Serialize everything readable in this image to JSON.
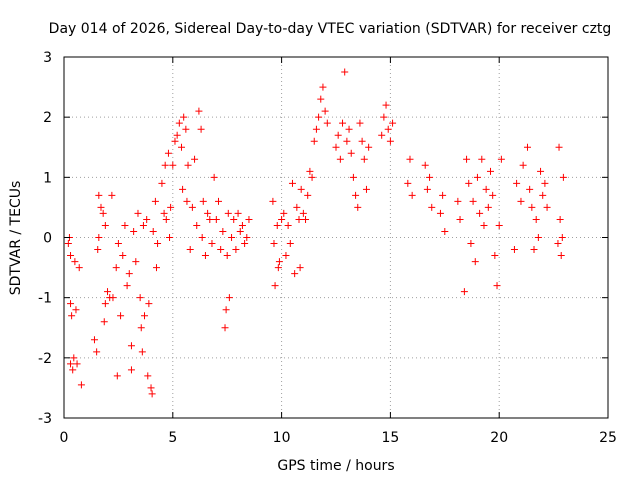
{
  "chart_data": {
    "type": "scatter",
    "title": "Day 014 of 2026, Sidereal Day-to-day VTEC variation (SDTVAR) for receiver cztg",
    "xlabel": "GPS time / hours",
    "ylabel": "SDTVAR / TECUs",
    "xlim": [
      0,
      25
    ],
    "ylim": [
      -3,
      3
    ],
    "xticks": [
      0,
      5,
      10,
      15,
      20,
      25
    ],
    "yticks": [
      -3,
      -2,
      -1,
      0,
      1,
      2,
      3
    ],
    "xtick_labels": [
      "0",
      "5",
      "10",
      "15",
      "20",
      "25"
    ],
    "ytick_labels": [
      "-3",
      "-2",
      "-1",
      "0",
      "1",
      "2",
      "3"
    ],
    "grid": true,
    "marker": "+",
    "color": "#ff0000",
    "series": [
      {
        "name": "SDTVAR",
        "points": [
          [
            0.2,
            -0.1
          ],
          [
            0.25,
            0.0
          ],
          [
            0.3,
            -0.3
          ],
          [
            0.3,
            -1.1
          ],
          [
            0.35,
            -1.3
          ],
          [
            0.3,
            -2.1
          ],
          [
            0.4,
            -2.2
          ],
          [
            0.45,
            -2.0
          ],
          [
            0.5,
            -0.4
          ],
          [
            0.55,
            -1.2
          ],
          [
            0.6,
            -2.1
          ],
          [
            0.7,
            -0.5
          ],
          [
            0.8,
            -2.45
          ],
          [
            1.4,
            -1.7
          ],
          [
            1.5,
            -1.9
          ],
          [
            1.55,
            -0.2
          ],
          [
            1.6,
            0.0
          ],
          [
            1.6,
            0.7
          ],
          [
            1.7,
            0.5
          ],
          [
            1.8,
            0.4
          ],
          [
            1.85,
            -1.4
          ],
          [
            1.9,
            0.2
          ],
          [
            1.9,
            -1.1
          ],
          [
            2.0,
            -0.9
          ],
          [
            2.1,
            -1.0
          ],
          [
            2.2,
            0.7
          ],
          [
            2.25,
            -1.0
          ],
          [
            2.4,
            -0.5
          ],
          [
            2.45,
            -2.3
          ],
          [
            2.5,
            -0.1
          ],
          [
            2.6,
            -1.3
          ],
          [
            2.7,
            -0.3
          ],
          [
            2.8,
            0.2
          ],
          [
            2.9,
            -0.8
          ],
          [
            3.0,
            -0.6
          ],
          [
            3.1,
            -2.2
          ],
          [
            3.1,
            -1.8
          ],
          [
            3.2,
            0.1
          ],
          [
            3.3,
            -0.4
          ],
          [
            3.4,
            0.4
          ],
          [
            3.5,
            -1.0
          ],
          [
            3.55,
            -1.5
          ],
          [
            3.6,
            -1.9
          ],
          [
            3.65,
            0.2
          ],
          [
            3.7,
            -1.3
          ],
          [
            3.8,
            0.3
          ],
          [
            3.85,
            -2.3
          ],
          [
            3.9,
            -1.1
          ],
          [
            4.0,
            -2.5
          ],
          [
            4.05,
            -2.6
          ],
          [
            4.1,
            0.1
          ],
          [
            4.2,
            0.6
          ],
          [
            4.25,
            -0.5
          ],
          [
            4.3,
            -0.1
          ],
          [
            4.5,
            0.9
          ],
          [
            4.6,
            0.4
          ],
          [
            4.65,
            1.2
          ],
          [
            4.7,
            0.3
          ],
          [
            4.8,
            1.4
          ],
          [
            4.85,
            0.0
          ],
          [
            4.9,
            0.5
          ],
          [
            5.0,
            1.2
          ],
          [
            5.1,
            1.6
          ],
          [
            5.2,
            1.7
          ],
          [
            5.3,
            1.9
          ],
          [
            5.4,
            1.5
          ],
          [
            5.45,
            0.8
          ],
          [
            5.5,
            2.0
          ],
          [
            5.6,
            1.8
          ],
          [
            5.65,
            0.6
          ],
          [
            5.7,
            1.2
          ],
          [
            5.8,
            -0.2
          ],
          [
            5.9,
            0.5
          ],
          [
            6.0,
            1.3
          ],
          [
            6.1,
            0.2
          ],
          [
            6.2,
            2.1
          ],
          [
            6.3,
            1.8
          ],
          [
            6.35,
            0.0
          ],
          [
            6.4,
            0.6
          ],
          [
            6.5,
            -0.3
          ],
          [
            6.6,
            0.4
          ],
          [
            6.7,
            0.3
          ],
          [
            6.8,
            -0.1
          ],
          [
            6.9,
            1.0
          ],
          [
            7.0,
            0.3
          ],
          [
            7.1,
            0.6
          ],
          [
            7.2,
            -0.2
          ],
          [
            7.3,
            0.1
          ],
          [
            7.4,
            -1.5
          ],
          [
            7.45,
            -1.2
          ],
          [
            7.5,
            -0.3
          ],
          [
            7.55,
            0.4
          ],
          [
            7.6,
            -1.0
          ],
          [
            7.7,
            0.0
          ],
          [
            7.8,
            0.3
          ],
          [
            7.9,
            -0.2
          ],
          [
            8.0,
            0.4
          ],
          [
            8.1,
            0.1
          ],
          [
            8.2,
            0.2
          ],
          [
            8.3,
            -0.1
          ],
          [
            8.4,
            0.0
          ],
          [
            8.5,
            0.3
          ],
          [
            9.6,
            0.6
          ],
          [
            9.65,
            -0.1
          ],
          [
            9.7,
            -0.8
          ],
          [
            9.8,
            0.2
          ],
          [
            9.85,
            -0.5
          ],
          [
            9.9,
            -0.4
          ],
          [
            10.0,
            0.3
          ],
          [
            10.1,
            0.4
          ],
          [
            10.2,
            -0.3
          ],
          [
            10.3,
            0.2
          ],
          [
            10.4,
            -0.1
          ],
          [
            10.5,
            0.9
          ],
          [
            10.6,
            -0.6
          ],
          [
            10.7,
            0.5
          ],
          [
            10.8,
            0.3
          ],
          [
            10.85,
            -0.5
          ],
          [
            10.9,
            0.8
          ],
          [
            11.0,
            0.4
          ],
          [
            11.1,
            0.3
          ],
          [
            11.2,
            0.7
          ],
          [
            11.3,
            1.1
          ],
          [
            11.4,
            1.0
          ],
          [
            11.5,
            1.6
          ],
          [
            11.6,
            1.8
          ],
          [
            11.7,
            2.0
          ],
          [
            11.8,
            2.3
          ],
          [
            11.9,
            2.5
          ],
          [
            12.0,
            2.1
          ],
          [
            12.1,
            1.9
          ],
          [
            12.5,
            1.5
          ],
          [
            12.6,
            1.7
          ],
          [
            12.7,
            1.3
          ],
          [
            12.8,
            1.9
          ],
          [
            12.9,
            2.75
          ],
          [
            13.0,
            1.6
          ],
          [
            13.1,
            1.8
          ],
          [
            13.2,
            1.4
          ],
          [
            13.3,
            1.0
          ],
          [
            13.4,
            0.7
          ],
          [
            13.5,
            0.5
          ],
          [
            13.6,
            1.9
          ],
          [
            13.7,
            1.6
          ],
          [
            13.8,
            1.3
          ],
          [
            13.9,
            0.8
          ],
          [
            14.0,
            1.5
          ],
          [
            14.6,
            1.7
          ],
          [
            14.7,
            2.0
          ],
          [
            14.8,
            2.2
          ],
          [
            14.9,
            1.8
          ],
          [
            15.0,
            1.6
          ],
          [
            15.1,
            1.9
          ],
          [
            15.8,
            0.9
          ],
          [
            15.9,
            1.3
          ],
          [
            16.0,
            0.7
          ],
          [
            16.6,
            1.2
          ],
          [
            16.7,
            0.8
          ],
          [
            16.8,
            1.0
          ],
          [
            16.9,
            0.5
          ],
          [
            17.3,
            0.4
          ],
          [
            17.4,
            0.7
          ],
          [
            17.5,
            0.1
          ],
          [
            18.1,
            0.6
          ],
          [
            18.2,
            0.3
          ],
          [
            18.4,
            -0.9
          ],
          [
            18.5,
            1.3
          ],
          [
            18.6,
            0.9
          ],
          [
            18.7,
            -0.1
          ],
          [
            18.8,
            0.6
          ],
          [
            18.9,
            -0.4
          ],
          [
            19.0,
            1.0
          ],
          [
            19.1,
            0.4
          ],
          [
            19.2,
            1.3
          ],
          [
            19.3,
            0.2
          ],
          [
            19.4,
            0.8
          ],
          [
            19.5,
            0.5
          ],
          [
            19.6,
            1.1
          ],
          [
            19.7,
            0.7
          ],
          [
            19.8,
            -0.3
          ],
          [
            19.9,
            -0.8
          ],
          [
            20.0,
            0.2
          ],
          [
            20.1,
            1.3
          ],
          [
            20.7,
            -0.2
          ],
          [
            20.8,
            0.9
          ],
          [
            21.0,
            0.6
          ],
          [
            21.1,
            1.2
          ],
          [
            21.3,
            1.5
          ],
          [
            21.4,
            0.8
          ],
          [
            21.5,
            0.5
          ],
          [
            21.6,
            -0.2
          ],
          [
            21.7,
            0.3
          ],
          [
            21.8,
            0.0
          ],
          [
            21.9,
            1.1
          ],
          [
            22.0,
            0.7
          ],
          [
            22.1,
            0.9
          ],
          [
            22.2,
            0.5
          ],
          [
            22.7,
            -0.1
          ],
          [
            22.75,
            1.5
          ],
          [
            22.8,
            0.3
          ],
          [
            22.85,
            -0.3
          ],
          [
            22.9,
            0.0
          ],
          [
            22.95,
            1.0
          ]
        ]
      }
    ]
  }
}
